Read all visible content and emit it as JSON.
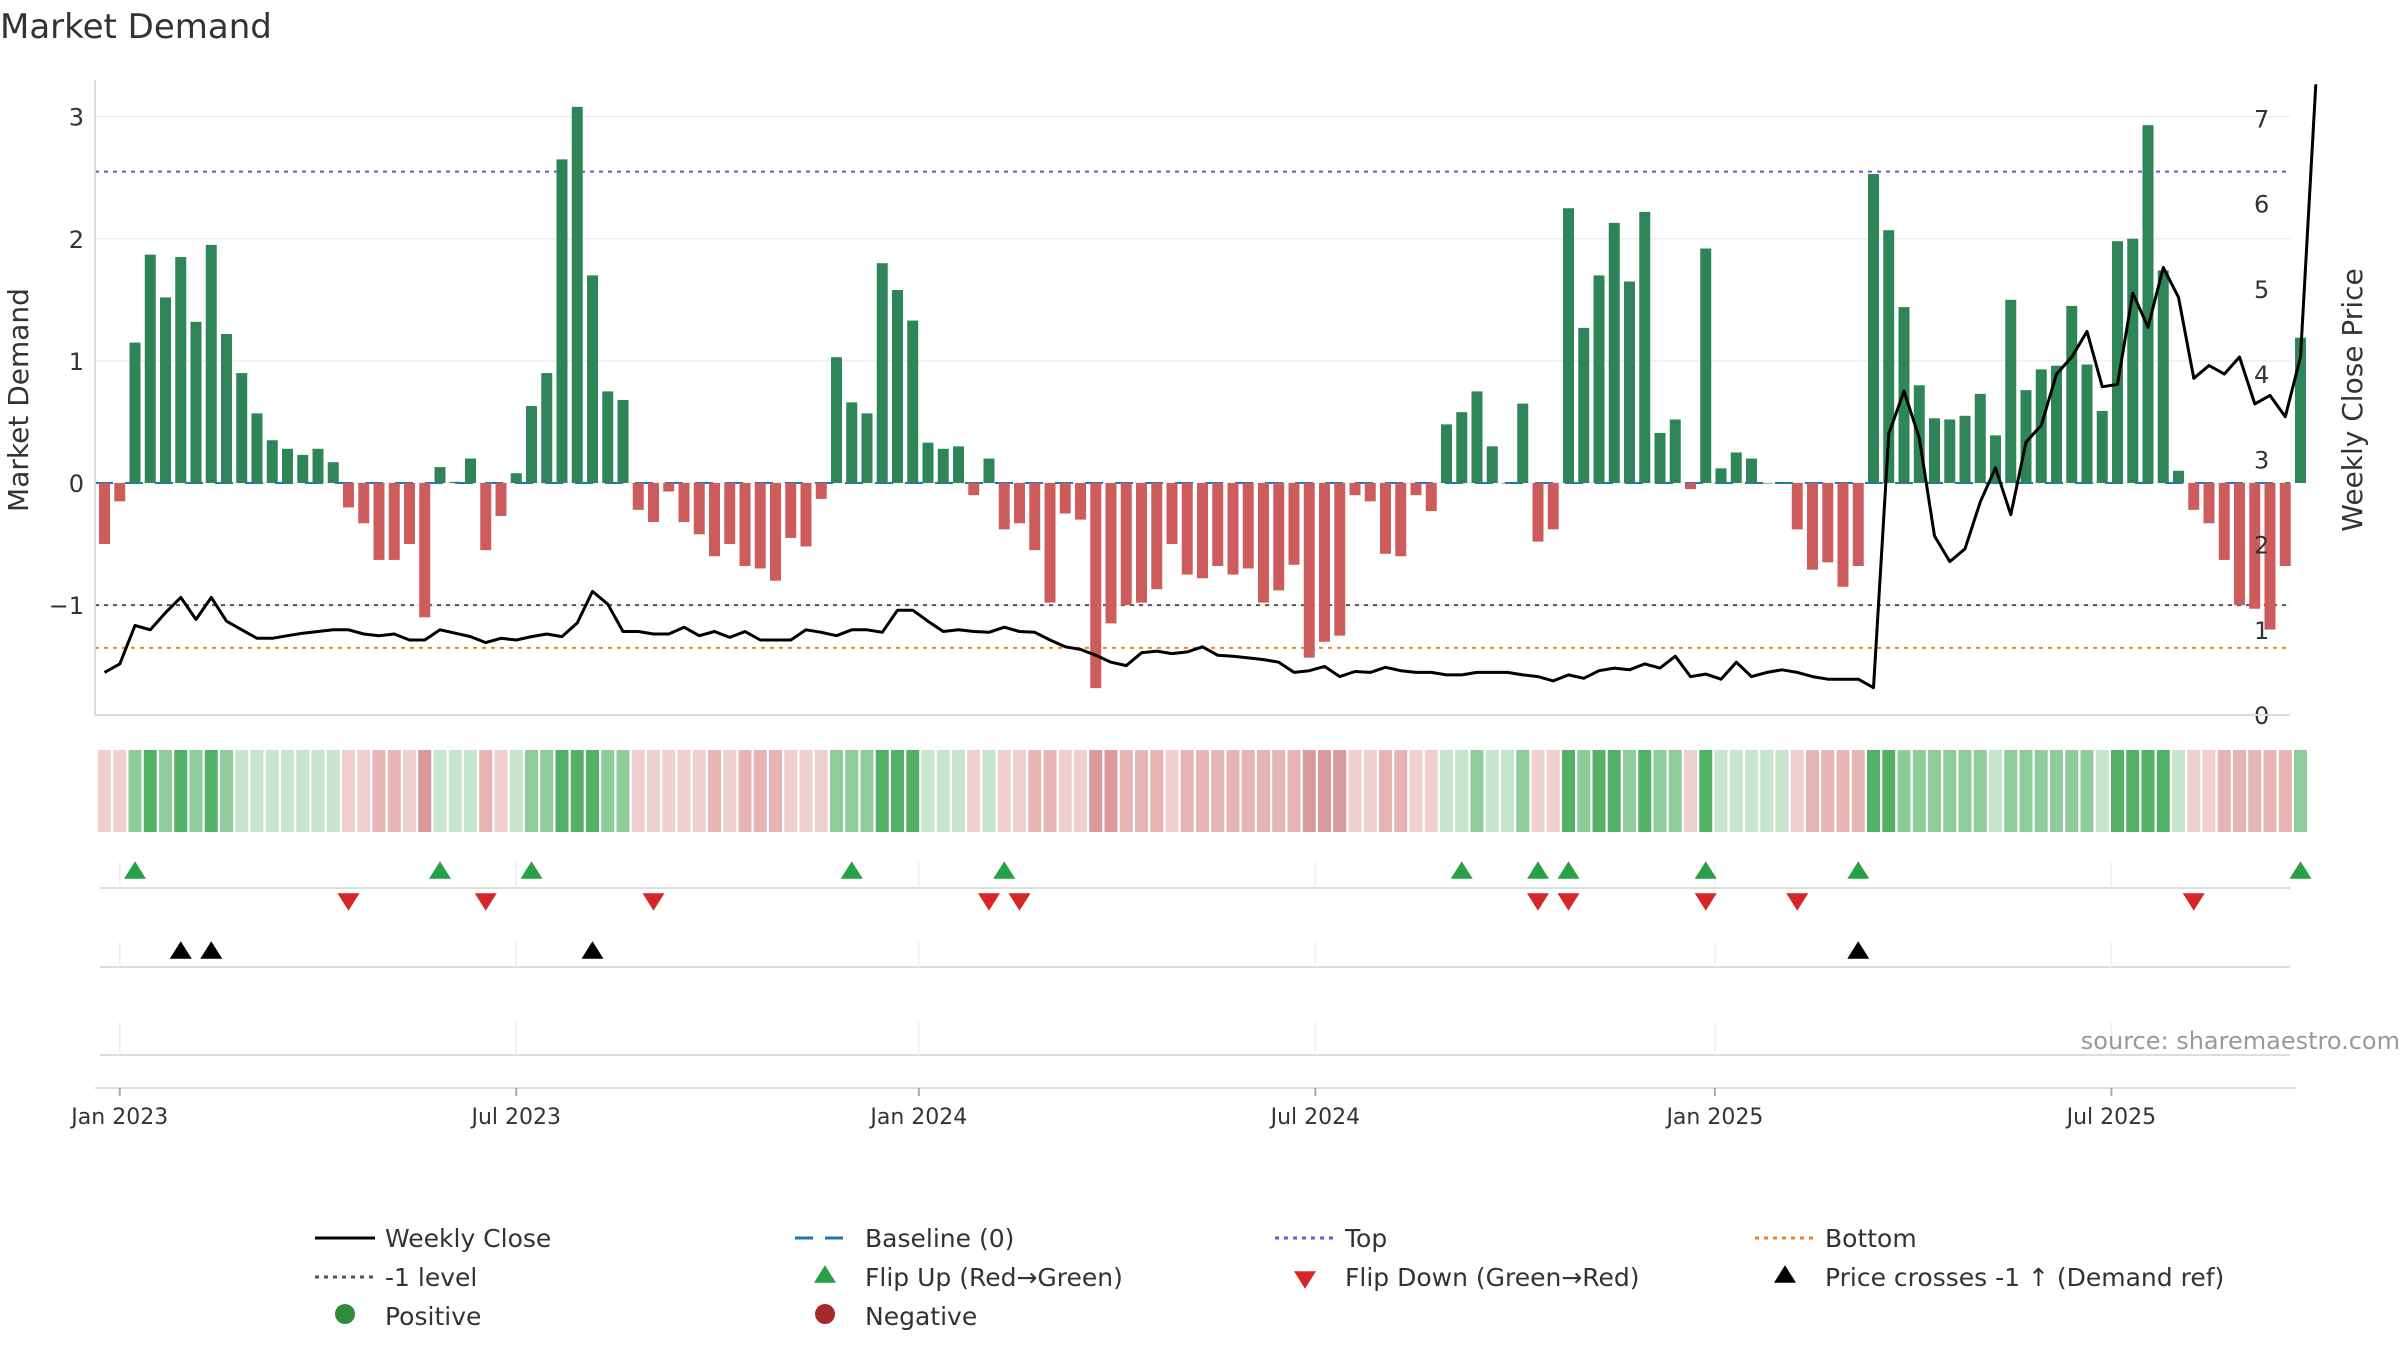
{
  "chart_data": {
    "type": "bar",
    "title": "Market Demand",
    "ylabel": "Market Demand",
    "y2label": "Weekly Close Price",
    "ylim": [
      -1.9,
      3.3
    ],
    "y2lim": [
      0,
      7.45
    ],
    "yticks": [
      -1,
      0,
      1,
      2,
      3
    ],
    "ytick_labels": [
      "−1",
      "0",
      "1",
      "2",
      "3"
    ],
    "y2ticks": [
      0,
      1,
      2,
      3,
      4,
      5,
      6,
      7
    ],
    "y2tick_labels": [
      "0",
      "1",
      "2",
      "3",
      "4",
      "5",
      "6",
      "7"
    ],
    "week_start": "2022-12-26",
    "week_count": 145,
    "xticks": [
      {
        "label": "Jan 2023",
        "week": 1
      },
      {
        "label": "Jul 2023",
        "week": 27
      },
      {
        "label": "Jan 2024",
        "week": 53.4
      },
      {
        "label": "Jul 2024",
        "week": 79.4
      },
      {
        "label": "Jan 2025",
        "week": 105.6
      },
      {
        "label": "Jul 2025",
        "week": 131.6
      }
    ],
    "reference_lines": {
      "top": 2.55,
      "bottom": -1.35,
      "minus_one": -1,
      "baseline": 0
    },
    "demand": [
      -0.5,
      -0.15,
      1.15,
      1.87,
      1.52,
      1.85,
      1.32,
      1.95,
      1.22,
      0.9,
      0.57,
      0.35,
      0.28,
      0.23,
      0.28,
      0.17,
      -0.2,
      -0.33,
      -0.63,
      -0.63,
      -0.5,
      -1.1,
      0.13,
      0.01,
      0.2,
      -0.55,
      -0.27,
      0.08,
      0.63,
      0.9,
      2.65,
      3.08,
      1.7,
      0.75,
      0.68,
      -0.22,
      -0.32,
      -0.07,
      -0.32,
      -0.42,
      -0.6,
      -0.5,
      -0.68,
      -0.7,
      -0.8,
      -0.45,
      -0.52,
      -0.13,
      1.03,
      0.66,
      0.57,
      1.8,
      1.58,
      1.33,
      0.33,
      0.28,
      0.3,
      -0.1,
      0.2,
      -0.38,
      -0.33,
      -0.55,
      -0.98,
      -0.25,
      -0.3,
      -1.68,
      -1.15,
      -1.0,
      -0.98,
      -0.87,
      -0.5,
      -0.75,
      -0.78,
      -0.68,
      -0.75,
      -0.7,
      -0.98,
      -0.88,
      -0.67,
      -1.43,
      -1.3,
      -1.25,
      -0.1,
      -0.15,
      -0.58,
      -0.6,
      -0.1,
      -0.23,
      0.48,
      0.58,
      0.75,
      0.3,
      0.0,
      0.65,
      -0.48,
      -0.38,
      2.25,
      1.27,
      1.7,
      2.13,
      1.65,
      2.22,
      0.41,
      0.52,
      -0.05,
      1.92,
      0.12,
      0.25,
      0.2,
      0.0,
      0.0,
      -0.38,
      -0.71,
      -0.65,
      -0.85,
      -0.68,
      2.53,
      2.07,
      1.44,
      0.8,
      0.53,
      0.52,
      0.55,
      0.73,
      0.39,
      1.5,
      0.76,
      0.93,
      0.96,
      1.45,
      0.97,
      0.59,
      1.98,
      2.0,
      2.93,
      1.74,
      0.1,
      -0.22,
      -0.33,
      -0.63,
      -1.0,
      -1.03,
      -1.2,
      -0.68,
      1.19
    ],
    "weekly_close": [
      0.5,
      0.6,
      1.05,
      1.0,
      1.2,
      1.38,
      1.12,
      1.38,
      1.1,
      1.0,
      0.9,
      0.9,
      0.93,
      0.96,
      0.98,
      1.0,
      1.0,
      0.95,
      0.93,
      0.95,
      0.88,
      0.88,
      1.0,
      0.96,
      0.92,
      0.85,
      0.9,
      0.88,
      0.92,
      0.95,
      0.92,
      1.08,
      1.45,
      1.3,
      0.98,
      0.98,
      0.95,
      0.95,
      1.03,
      0.93,
      0.98,
      0.91,
      0.98,
      0.88,
      0.88,
      0.88,
      1.0,
      0.97,
      0.93,
      1.0,
      1.0,
      0.97,
      1.23,
      1.23,
      1.1,
      0.98,
      1.0,
      0.98,
      0.97,
      1.03,
      0.98,
      0.97,
      0.88,
      0.8,
      0.77,
      0.7,
      0.62,
      0.58,
      0.73,
      0.75,
      0.72,
      0.74,
      0.8,
      0.7,
      0.69,
      0.67,
      0.65,
      0.62,
      0.5,
      0.52,
      0.57,
      0.45,
      0.51,
      0.5,
      0.56,
      0.52,
      0.5,
      0.5,
      0.47,
      0.47,
      0.5,
      0.5,
      0.5,
      0.47,
      0.45,
      0.4,
      0.47,
      0.43,
      0.52,
      0.55,
      0.53,
      0.6,
      0.55,
      0.69,
      0.45,
      0.48,
      0.42,
      0.62,
      0.45,
      0.5,
      0.53,
      0.5,
      0.45,
      0.42,
      0.42,
      0.42,
      0.32,
      3.3,
      3.8,
      3.25,
      2.1,
      1.8,
      1.95,
      2.5,
      2.9,
      2.35,
      3.2,
      3.4,
      4.0,
      4.2,
      4.5,
      3.85,
      3.88,
      4.95,
      4.55,
      5.25,
      4.9,
      3.95,
      4.1,
      4.0,
      4.2,
      3.65,
      3.75,
      3.5,
      4.2,
      7.4
    ],
    "heat_strength": [
      1,
      1,
      2,
      3,
      2,
      3,
      2,
      3,
      2,
      1,
      1,
      1,
      1,
      1,
      1,
      1,
      1,
      1,
      2,
      2,
      1,
      3,
      1,
      1,
      1,
      2,
      1,
      1,
      2,
      2,
      3,
      3,
      3,
      2,
      2,
      1,
      1,
      1,
      1,
      1,
      2,
      1,
      2,
      2,
      2,
      1,
      1,
      1,
      2,
      2,
      2,
      3,
      3,
      3,
      1,
      1,
      1,
      1,
      1,
      1,
      1,
      2,
      2,
      1,
      1,
      3,
      3,
      2,
      2,
      2,
      1,
      2,
      2,
      2,
      2,
      2,
      2,
      2,
      2,
      3,
      3,
      3,
      1,
      1,
      2,
      2,
      1,
      1,
      1,
      1,
      2,
      1,
      1,
      2,
      1,
      1,
      3,
      2,
      3,
      3,
      2,
      3,
      2,
      2,
      1,
      3,
      1,
      1,
      1,
      1,
      1,
      1,
      2,
      2,
      2,
      2,
      3,
      3,
      2,
      2,
      2,
      2,
      2,
      2,
      1,
      2,
      2,
      2,
      2,
      2,
      2,
      1,
      3,
      3,
      3,
      3,
      1,
      1,
      1,
      2,
      2,
      2,
      2,
      2,
      2
    ],
    "flip_up_weeks": [
      2,
      22,
      28,
      49,
      59,
      89,
      94,
      96,
      105,
      115,
      144
    ],
    "flip_down_weeks": [
      16,
      25,
      36,
      58,
      60,
      94,
      96,
      105,
      111,
      137
    ],
    "price_cross_weeks": [
      5,
      7,
      32,
      115
    ],
    "legend": [
      {
        "label": "Weekly Close",
        "marker": "solid-line",
        "color": "#000000"
      },
      {
        "label": "Baseline (0)",
        "marker": "dashed-line",
        "color": "#1f77b4"
      },
      {
        "label": "Top",
        "marker": "dotted-line",
        "color": "#6a5acd"
      },
      {
        "label": "Bottom",
        "marker": "dotted-line",
        "color": "#e08a1e"
      },
      {
        "label": "-1 level",
        "marker": "dotted-line",
        "color": "#555555"
      },
      {
        "label": "Flip Up (Red→Green)",
        "marker": "triangle-up",
        "color": "#27a046"
      },
      {
        "label": "Flip Down (Green→Red)",
        "marker": "triangle-down",
        "color": "#d62728"
      },
      {
        "label": "Price crosses -1 ↑ (Demand ref)",
        "marker": "triangle-up",
        "color": "#000000"
      },
      {
        "label": "Positive",
        "marker": "circle",
        "color": "#2e8b3a"
      },
      {
        "label": "Negative",
        "marker": "circle",
        "color": "#a52a2a"
      }
    ],
    "source": "source: sharemaestro.com"
  },
  "colors": {
    "positive_bar": "#2e8557",
    "negative_bar": "#cd5c5c",
    "heat_pos": [
      "#c8e6cd",
      "#8fcc9b",
      "#53b067"
    ],
    "heat_neg": [
      "#f0d0cf",
      "#e6b4b4",
      "#d89a9a"
    ]
  }
}
